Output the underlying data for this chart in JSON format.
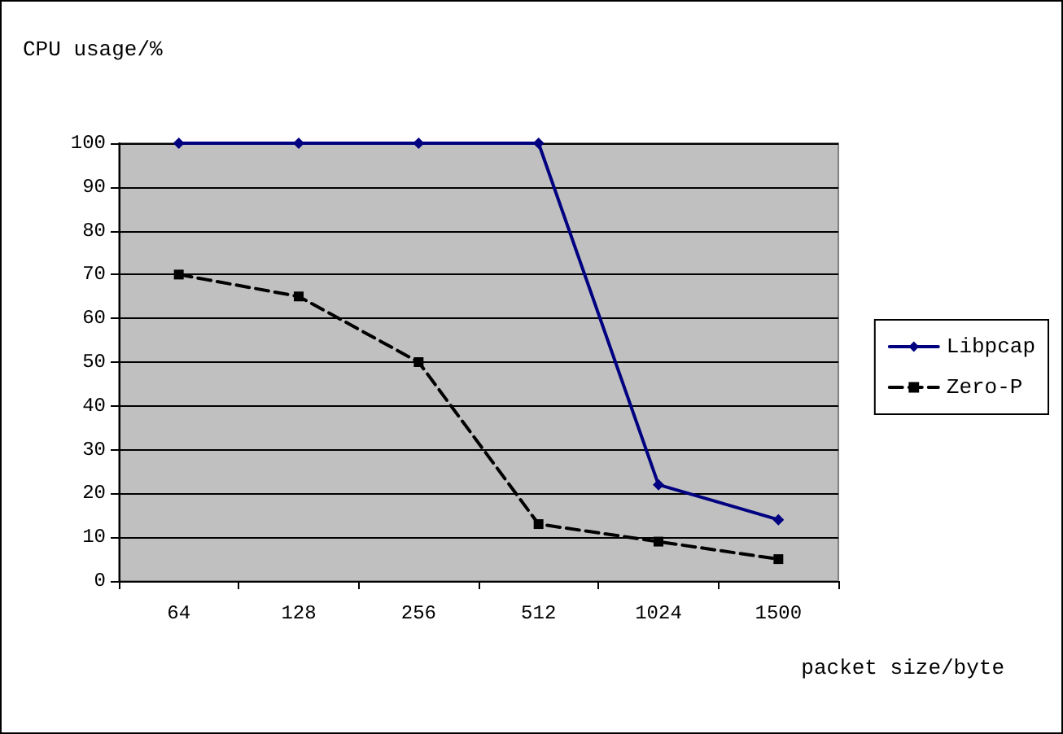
{
  "chart_data": {
    "type": "line",
    "xlabel": "packet size/byte",
    "ylabel": "CPU usage/%",
    "categories": [
      "64",
      "128",
      "256",
      "512",
      "1024",
      "1500"
    ],
    "series": [
      {
        "name": "Libpcap",
        "color": "#000080",
        "values": [
          100,
          100,
          100,
          100,
          22,
          14
        ],
        "marker": "diamond",
        "line_style": "solid"
      },
      {
        "name": "Zero-P",
        "color": "#000000",
        "values": [
          70,
          65,
          50,
          13,
          9,
          5
        ],
        "marker": "square",
        "line_style": "dashed"
      }
    ],
    "ylim": [
      0,
      100
    ],
    "yticks": [
      0,
      10,
      20,
      30,
      40,
      50,
      60,
      70,
      80,
      90,
      100
    ],
    "grid": "y",
    "legend": "right"
  }
}
